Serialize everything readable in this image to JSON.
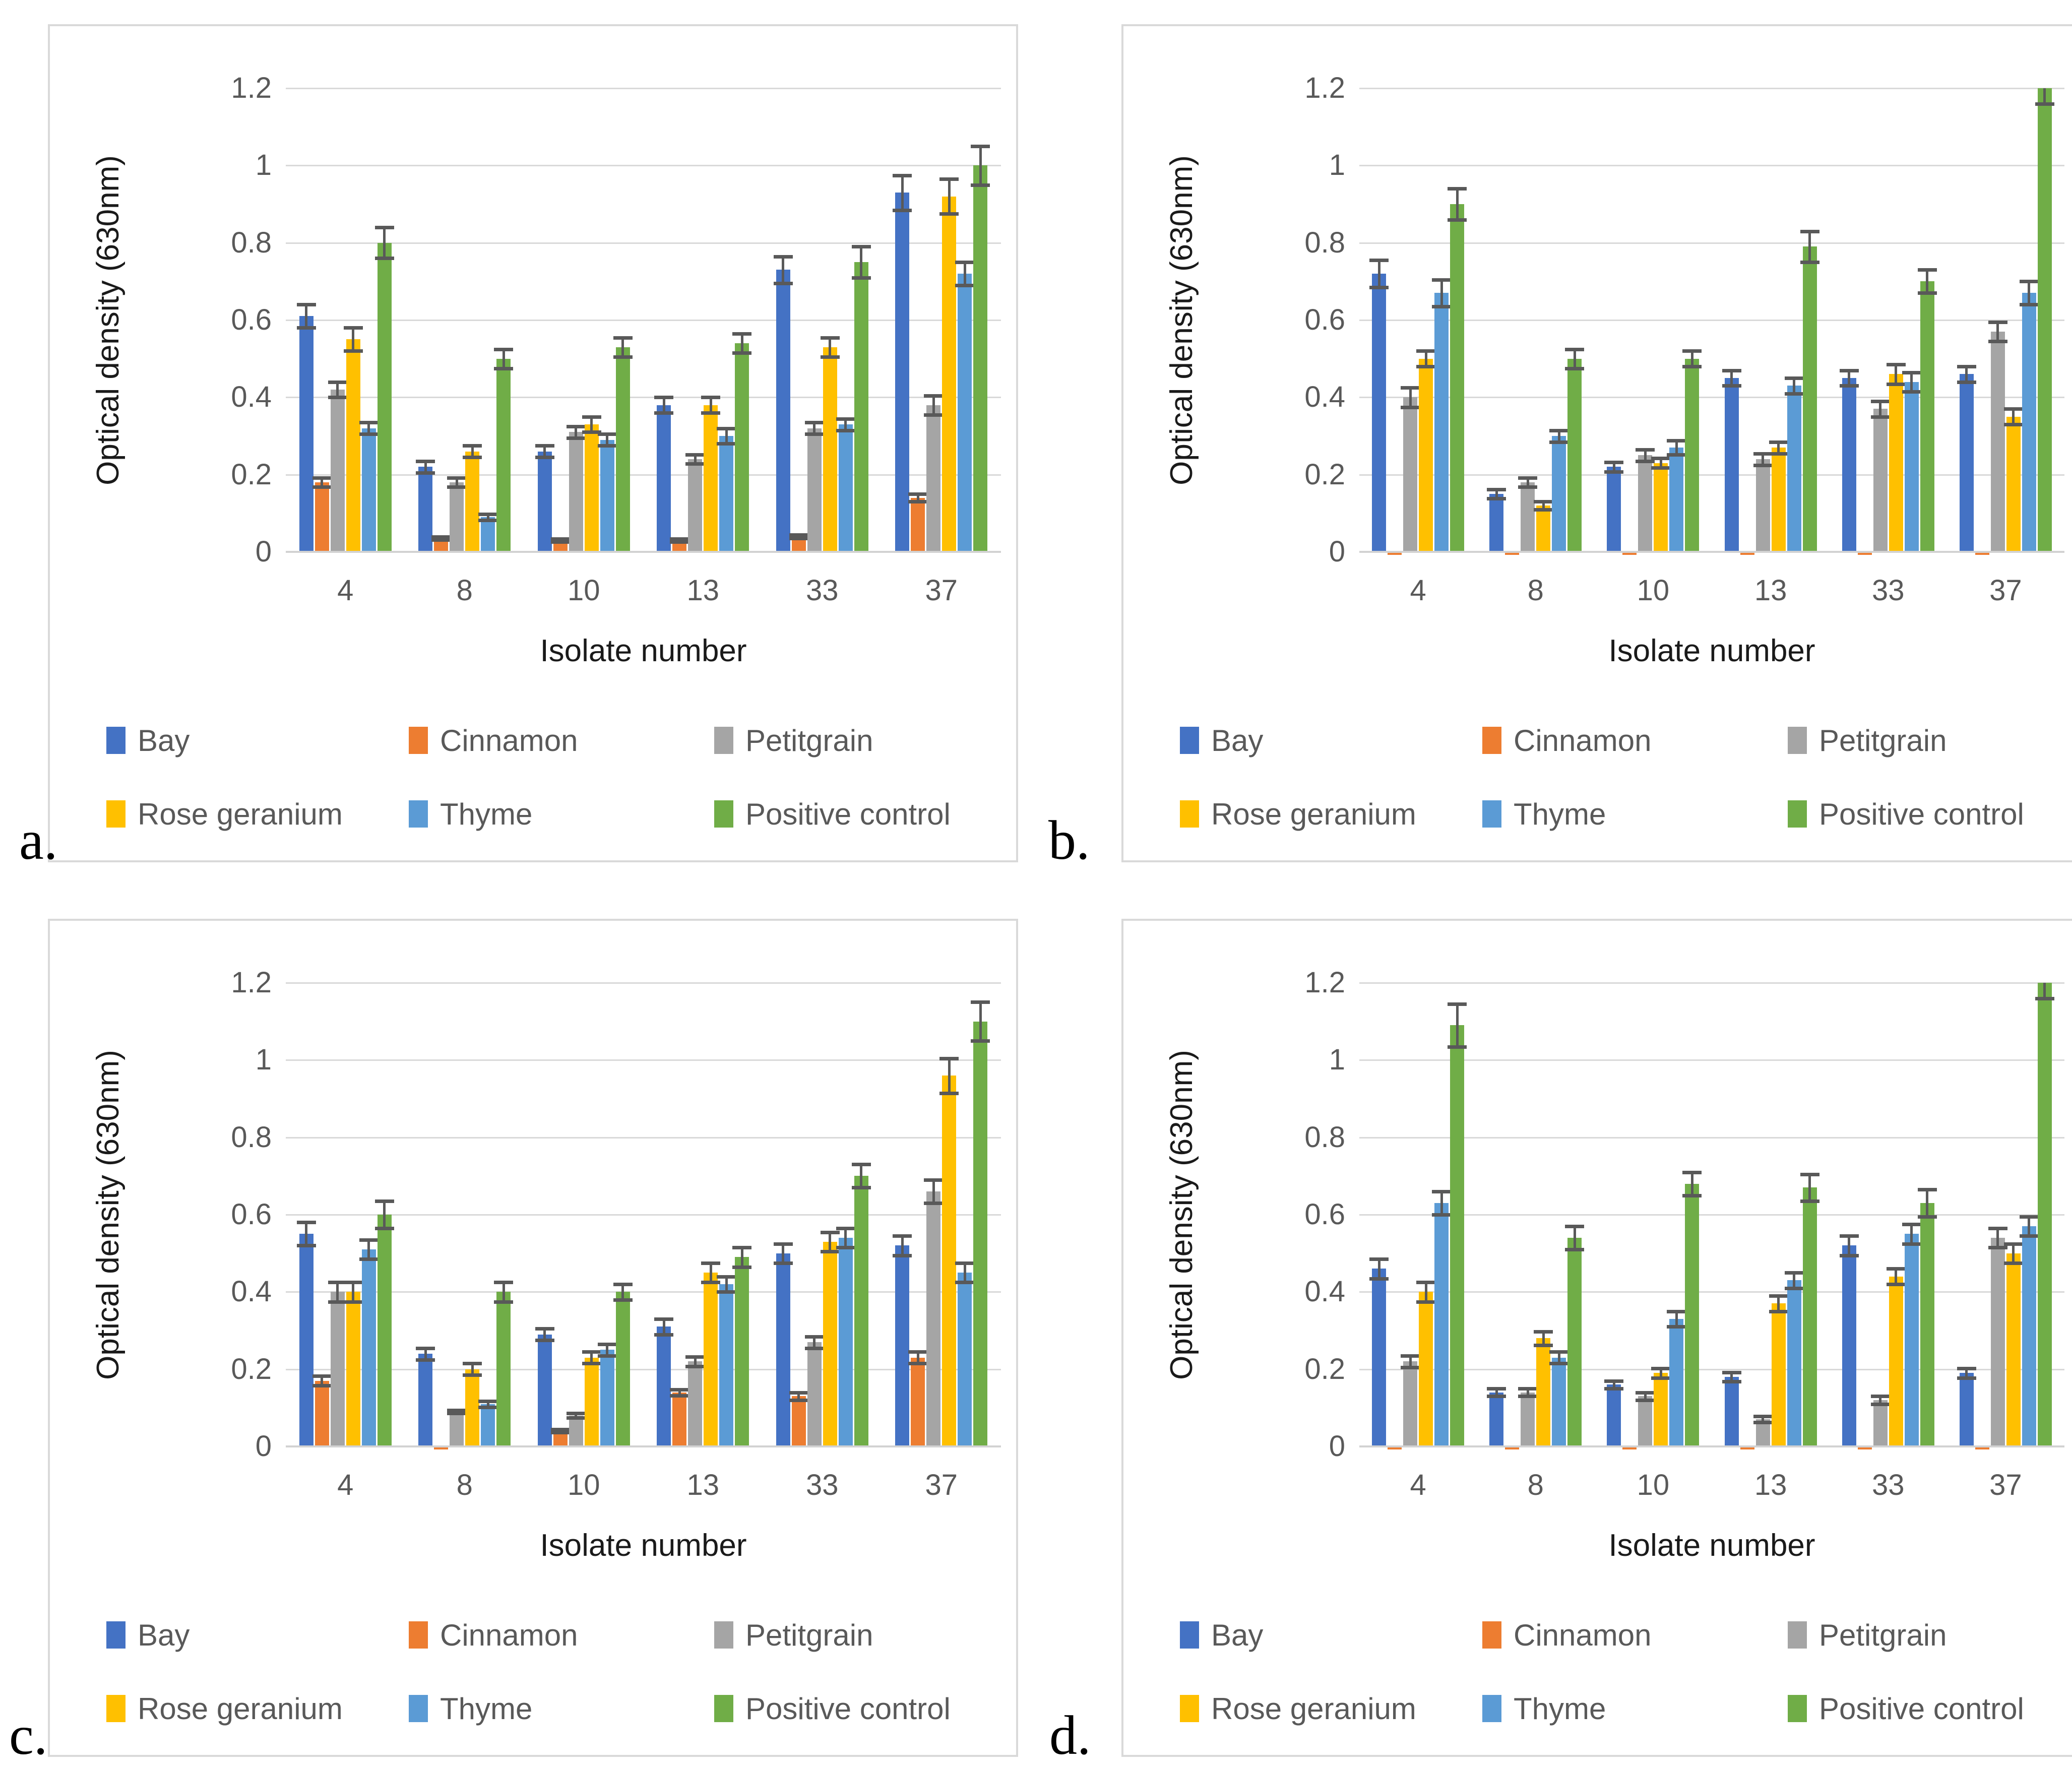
{
  "chart_data": [
    {
      "type": "bar",
      "panel_label": "a.",
      "title": "",
      "xlabel": "Isolate number",
      "ylabel": "Optical density (630nm)",
      "categories": [
        "4",
        "8",
        "10",
        "13",
        "33",
        "37"
      ],
      "ylim": [
        0,
        1.2
      ],
      "ytick_step": 0.2,
      "grid": true,
      "legend_position": "bottom-two-rows",
      "series": [
        {
          "name": "Bay",
          "color": "#4472C4",
          "values": [
            0.61,
            0.22,
            0.26,
            0.38,
            0.73,
            0.93
          ],
          "errors": [
            0.03,
            0.015,
            0.015,
            0.02,
            0.035,
            0.045
          ]
        },
        {
          "name": "Cinnamon",
          "color": "#ED7D31",
          "values": [
            0.18,
            0.035,
            0.03,
            0.03,
            0.04,
            0.14
          ],
          "errors": [
            0.012,
            0.004,
            0.004,
            0.004,
            0.005,
            0.01
          ]
        },
        {
          "name": "Petitgrain",
          "color": "#A5A5A5",
          "values": [
            0.42,
            0.18,
            0.31,
            0.24,
            0.32,
            0.38
          ],
          "errors": [
            0.02,
            0.012,
            0.015,
            0.012,
            0.015,
            0.025
          ]
        },
        {
          "name": "Rose geranium",
          "color": "#FFC000",
          "values": [
            0.55,
            0.26,
            0.33,
            0.38,
            0.53,
            0.92
          ],
          "errors": [
            0.03,
            0.015,
            0.02,
            0.02,
            0.025,
            0.045
          ]
        },
        {
          "name": "Thyme",
          "color": "#5B9BD5",
          "values": [
            0.32,
            0.09,
            0.29,
            0.3,
            0.33,
            0.72
          ],
          "errors": [
            0.015,
            0.008,
            0.015,
            0.02,
            0.015,
            0.03
          ]
        },
        {
          "name": "Positive control",
          "color": "#70AD47",
          "values": [
            0.8,
            0.5,
            0.53,
            0.54,
            0.75,
            1.0
          ],
          "errors": [
            0.04,
            0.025,
            0.025,
            0.025,
            0.04,
            0.05
          ]
        }
      ]
    },
    {
      "type": "bar",
      "panel_label": "b.",
      "title": "",
      "xlabel": "Isolate number",
      "ylabel": "Optical density (630nm)",
      "categories": [
        "4",
        "8",
        "10",
        "13",
        "33",
        "37"
      ],
      "ylim": [
        0,
        1.2
      ],
      "ytick_step": 0.2,
      "grid": true,
      "legend_position": "bottom-two-rows",
      "series": [
        {
          "name": "Bay",
          "color": "#4472C4",
          "values": [
            0.72,
            0.15,
            0.22,
            0.45,
            0.45,
            0.46
          ],
          "errors": [
            0.035,
            0.012,
            0.012,
            0.02,
            0.02,
            0.02
          ]
        },
        {
          "name": "Cinnamon",
          "color": "#ED7D31",
          "values": [
            0.005,
            0.005,
            0.005,
            0.005,
            0.005,
            0.005
          ],
          "errors": [
            0,
            0,
            0,
            0,
            0,
            0
          ]
        },
        {
          "name": "Petitgrain",
          "color": "#A5A5A5",
          "values": [
            0.4,
            0.18,
            0.25,
            0.24,
            0.37,
            0.57
          ],
          "errors": [
            0.025,
            0.012,
            0.015,
            0.015,
            0.02,
            0.025
          ]
        },
        {
          "name": "Rose geranium",
          "color": "#FFC000",
          "values": [
            0.5,
            0.12,
            0.23,
            0.27,
            0.46,
            0.35
          ],
          "errors": [
            0.02,
            0.01,
            0.012,
            0.015,
            0.025,
            0.02
          ]
        },
        {
          "name": "Thyme",
          "color": "#5B9BD5",
          "values": [
            0.67,
            0.3,
            0.27,
            0.43,
            0.44,
            0.67
          ],
          "errors": [
            0.035,
            0.015,
            0.018,
            0.02,
            0.025,
            0.03
          ]
        },
        {
          "name": "Positive control",
          "color": "#70AD47",
          "values": [
            0.9,
            0.5,
            0.5,
            0.79,
            0.7,
            1.2
          ],
          "errors": [
            0.04,
            0.025,
            0.02,
            0.04,
            0.03,
            0.04
          ]
        }
      ]
    },
    {
      "type": "bar",
      "panel_label": "c.",
      "title": "",
      "xlabel": "Isolate number",
      "ylabel": "Optical density (630nm)",
      "categories": [
        "4",
        "8",
        "10",
        "13",
        "33",
        "37"
      ],
      "ylim": [
        0,
        1.2
      ],
      "ytick_step": 0.2,
      "grid": true,
      "legend_position": "bottom-two-rows",
      "series": [
        {
          "name": "Bay",
          "color": "#4472C4",
          "values": [
            0.55,
            0.24,
            0.29,
            0.31,
            0.5,
            0.52
          ],
          "errors": [
            0.03,
            0.015,
            0.015,
            0.02,
            0.025,
            0.025
          ]
        },
        {
          "name": "Cinnamon",
          "color": "#ED7D31",
          "values": [
            0.17,
            0.005,
            0.04,
            0.14,
            0.13,
            0.23
          ],
          "errors": [
            0.012,
            0,
            0.004,
            0.008,
            0.01,
            0.015
          ]
        },
        {
          "name": "Petitgrain",
          "color": "#A5A5A5",
          "values": [
            0.4,
            0.09,
            0.08,
            0.22,
            0.27,
            0.66
          ],
          "errors": [
            0.025,
            0.004,
            0.006,
            0.012,
            0.015,
            0.03
          ]
        },
        {
          "name": "Rose geranium",
          "color": "#FFC000",
          "values": [
            0.4,
            0.2,
            0.23,
            0.45,
            0.53,
            0.96
          ],
          "errors": [
            0.025,
            0.015,
            0.015,
            0.025,
            0.025,
            0.045
          ]
        },
        {
          "name": "Thyme",
          "color": "#5B9BD5",
          "values": [
            0.51,
            0.11,
            0.25,
            0.42,
            0.54,
            0.45
          ],
          "errors": [
            0.025,
            0.008,
            0.015,
            0.02,
            0.025,
            0.025
          ]
        },
        {
          "name": "Positive control",
          "color": "#70AD47",
          "values": [
            0.6,
            0.4,
            0.4,
            0.49,
            0.7,
            1.1
          ],
          "errors": [
            0.035,
            0.025,
            0.02,
            0.025,
            0.03,
            0.05
          ]
        }
      ]
    },
    {
      "type": "bar",
      "panel_label": "d.",
      "title": "",
      "xlabel": "Isolate number",
      "ylabel": "Optical density (630nm)",
      "categories": [
        "4",
        "8",
        "10",
        "13",
        "33",
        "37"
      ],
      "ylim": [
        0,
        1.2
      ],
      "ytick_step": 0.2,
      "grid": true,
      "legend_position": "bottom-two-rows",
      "series": [
        {
          "name": "Bay",
          "color": "#4472C4",
          "values": [
            0.46,
            0.14,
            0.16,
            0.18,
            0.52,
            0.19
          ],
          "errors": [
            0.025,
            0.01,
            0.01,
            0.012,
            0.025,
            0.012
          ]
        },
        {
          "name": "Cinnamon",
          "color": "#ED7D31",
          "values": [
            0.005,
            0.005,
            0.005,
            0.005,
            0.005,
            0.005
          ],
          "errors": [
            0,
            0,
            0,
            0,
            0,
            0
          ]
        },
        {
          "name": "Petitgrain",
          "color": "#A5A5A5",
          "values": [
            0.22,
            0.14,
            0.13,
            0.07,
            0.12,
            0.54
          ],
          "errors": [
            0.015,
            0.01,
            0.01,
            0.008,
            0.01,
            0.025
          ]
        },
        {
          "name": "Rose geranium",
          "color": "#FFC000",
          "values": [
            0.4,
            0.28,
            0.19,
            0.37,
            0.44,
            0.5
          ],
          "errors": [
            0.025,
            0.018,
            0.012,
            0.02,
            0.02,
            0.025
          ]
        },
        {
          "name": "Thyme",
          "color": "#5B9BD5",
          "values": [
            0.63,
            0.23,
            0.33,
            0.43,
            0.55,
            0.57
          ],
          "errors": [
            0.03,
            0.015,
            0.02,
            0.02,
            0.025,
            0.025
          ]
        },
        {
          "name": "Positive control",
          "color": "#70AD47",
          "values": [
            1.09,
            0.54,
            0.68,
            0.67,
            0.63,
            1.2
          ],
          "errors": [
            0.055,
            0.03,
            0.03,
            0.035,
            0.035,
            0.04
          ]
        }
      ]
    }
  ],
  "style": {
    "gridline_color": "#d9d9d9",
    "axis_line_color": "#d2d2d2",
    "error_bar_color": "#595959",
    "tick_label_color": "#595959",
    "axis_title_color": "#1a1a1a"
  }
}
